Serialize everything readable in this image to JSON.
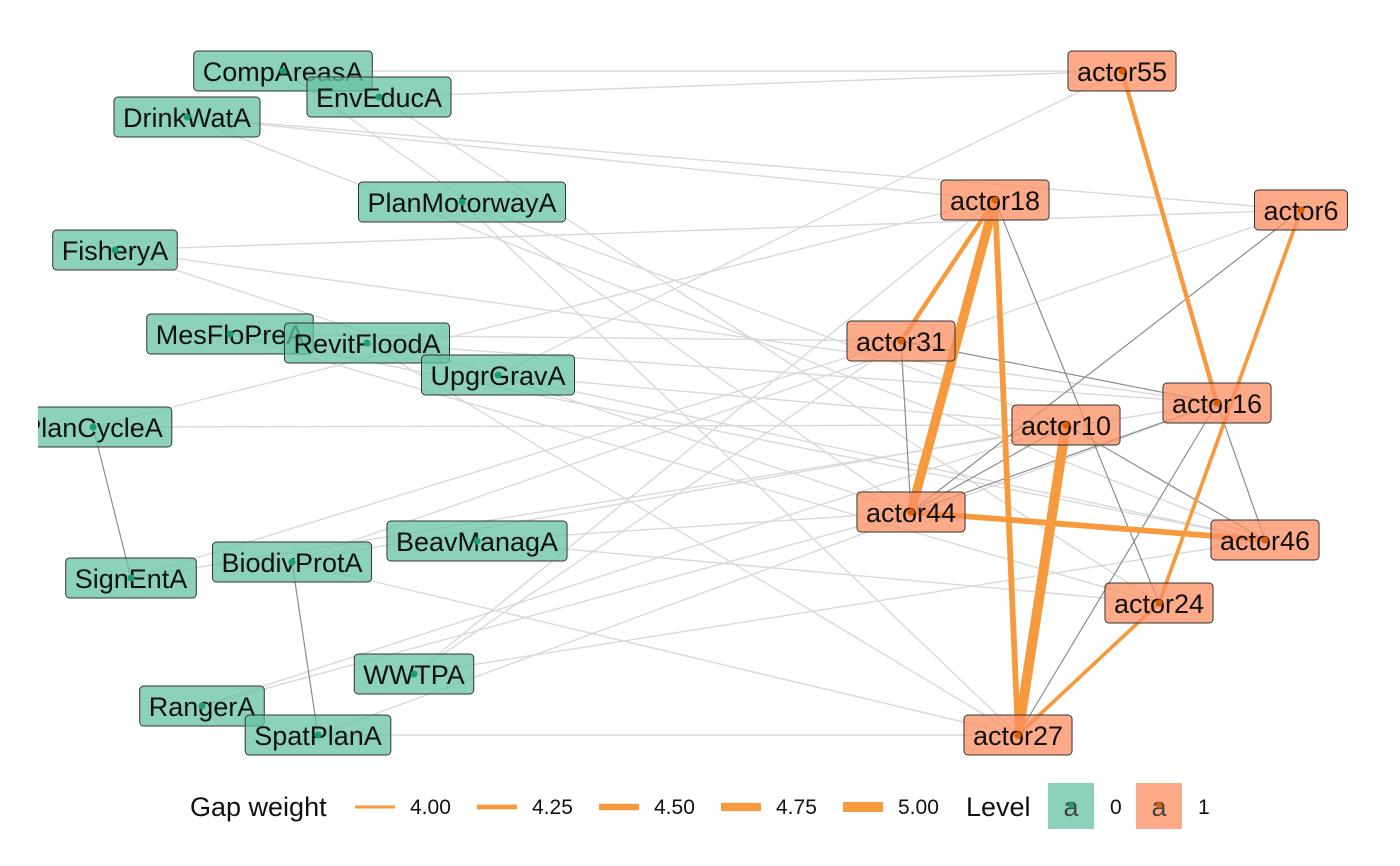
{
  "colors": {
    "level0_fill": "#66C2A5",
    "level1_fill": "#FC8D62",
    "level0_point": "#1B9E77",
    "level1_point": "#D95F02",
    "gap_edge": "#F79A3E",
    "background_edge": "#d9d9d9",
    "within_edge": "#8c8c8c"
  },
  "nodes": [
    {
      "id": "CompAreasA",
      "level": 0
    },
    {
      "id": "EnvEducA",
      "level": 0
    },
    {
      "id": "DrinkWatA",
      "level": 0
    },
    {
      "id": "PlanMotorwayA",
      "level": 0
    },
    {
      "id": "FisheryA",
      "level": 0
    },
    {
      "id": "MesFloPreA",
      "level": 0
    },
    {
      "id": "RevitFloodA",
      "level": 0
    },
    {
      "id": "UpgrGravA",
      "level": 0
    },
    {
      "id": "PlanCycleA",
      "level": 0
    },
    {
      "id": "BeavManagA",
      "level": 0
    },
    {
      "id": "BiodivProtA",
      "level": 0
    },
    {
      "id": "SignEntA",
      "level": 0
    },
    {
      "id": "WWTPA",
      "level": 0
    },
    {
      "id": "RangerA",
      "level": 0
    },
    {
      "id": "SpatPlanA",
      "level": 0
    },
    {
      "id": "actor55",
      "level": 1
    },
    {
      "id": "actor18",
      "level": 1
    },
    {
      "id": "actor6",
      "level": 1
    },
    {
      "id": "actor31",
      "level": 1
    },
    {
      "id": "actor16",
      "level": 1
    },
    {
      "id": "actor10",
      "level": 1
    },
    {
      "id": "actor44",
      "level": 1
    },
    {
      "id": "actor46",
      "level": 1
    },
    {
      "id": "actor24",
      "level": 1
    },
    {
      "id": "actor27",
      "level": 1
    }
  ],
  "gap_edges": [
    {
      "source": "actor55",
      "target": "actor16",
      "weight": 4.2
    },
    {
      "source": "actor6",
      "target": "actor24",
      "weight": 4.1
    },
    {
      "source": "actor18",
      "target": "actor31",
      "weight": 4.2
    },
    {
      "source": "actor18",
      "target": "actor44",
      "weight": 4.9
    },
    {
      "source": "actor18",
      "target": "actor27",
      "weight": 4.4
    },
    {
      "source": "actor10",
      "target": "actor27",
      "weight": 5.0
    },
    {
      "source": "actor44",
      "target": "actor46",
      "weight": 4.4
    },
    {
      "source": "actor24",
      "target": "actor27",
      "weight": 4.1
    }
  ],
  "within_edges": [
    [
      "PlanCycleA",
      "SignEntA"
    ],
    [
      "BiodivProtA",
      "SpatPlanA"
    ],
    [
      "actor31",
      "actor44"
    ],
    [
      "actor31",
      "actor16"
    ],
    [
      "actor18",
      "actor24"
    ],
    [
      "actor44",
      "actor10"
    ],
    [
      "actor44",
      "actor16"
    ],
    [
      "actor10",
      "actor46"
    ],
    [
      "actor16",
      "actor46"
    ],
    [
      "actor16",
      "actor27"
    ],
    [
      "actor6",
      "actor44"
    ]
  ],
  "background_edges": [
    [
      "CompAreasA",
      "actor55"
    ],
    [
      "EnvEducA",
      "actor55"
    ],
    [
      "EnvEducA",
      "actor24"
    ],
    [
      "DrinkWatA",
      "actor18"
    ],
    [
      "DrinkWatA",
      "actor46"
    ],
    [
      "PlanMotorwayA",
      "actor10"
    ],
    [
      "PlanMotorwayA",
      "actor27"
    ],
    [
      "FisheryA",
      "actor6"
    ],
    [
      "FisheryA",
      "actor44"
    ],
    [
      "MesFloPreA",
      "actor31"
    ],
    [
      "MesFloPreA",
      "actor24"
    ],
    [
      "RevitFloodA",
      "actor16"
    ],
    [
      "RevitFloodA",
      "actor27"
    ],
    [
      "UpgrGravA",
      "actor10"
    ],
    [
      "UpgrGravA",
      "actor46"
    ],
    [
      "UpgrGravA",
      "actor55"
    ],
    [
      "PlanCycleA",
      "actor18"
    ],
    [
      "PlanCycleA",
      "actor10"
    ],
    [
      "BeavManagA",
      "actor44"
    ],
    [
      "BeavManagA",
      "actor24"
    ],
    [
      "BiodivProtA",
      "actor6"
    ],
    [
      "BiodivProtA",
      "actor27"
    ],
    [
      "SignEntA",
      "actor31"
    ],
    [
      "SignEntA",
      "actor16"
    ],
    [
      "WWTPA",
      "actor18"
    ],
    [
      "WWTPA",
      "actor31"
    ],
    [
      "WWTPA",
      "actor46"
    ],
    [
      "RangerA",
      "actor10"
    ],
    [
      "RangerA",
      "actor44"
    ],
    [
      "SpatPlanA",
      "actor16"
    ],
    [
      "SpatPlanA",
      "actor27"
    ],
    [
      "CompAreasA",
      "actor44"
    ],
    [
      "DrinkWatA",
      "actor6"
    ],
    [
      "FisheryA",
      "actor16"
    ],
    [
      "MesFloPreA",
      "actor46"
    ],
    [
      "BiodivProtA",
      "actor10"
    ]
  ],
  "legend": {
    "gap_title": "Gap weight",
    "gap_items": [
      {
        "label": "4.00",
        "weight": 4.0
      },
      {
        "label": "4.25",
        "weight": 4.25
      },
      {
        "label": "4.50",
        "weight": 4.5
      },
      {
        "label": "4.75",
        "weight": 4.75
      },
      {
        "label": "5.00",
        "weight": 5.0
      }
    ],
    "level_title": "Level",
    "level_items": [
      {
        "label": "0",
        "level": 0,
        "glyph": "a"
      },
      {
        "label": "1",
        "level": 1,
        "glyph": "a"
      }
    ]
  }
}
